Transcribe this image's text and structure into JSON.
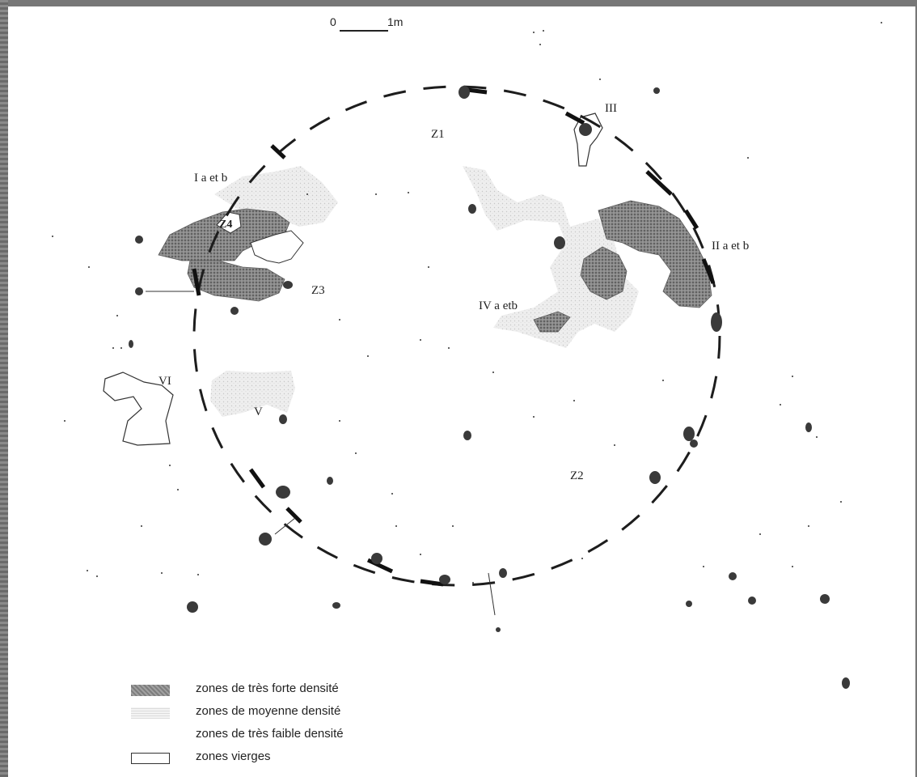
{
  "scale": {
    "start": "0",
    "end": "1m"
  },
  "labels": {
    "z1": "Z1",
    "z2": "Z2",
    "z3": "Z3",
    "z4": "Z4",
    "i": "I a et b",
    "ii": "II a et b",
    "iii": "III",
    "iv": "IV a etb",
    "v": "V",
    "vi": "VI"
  },
  "legend": [
    {
      "swatch": "high",
      "label": "zones de très forte densité"
    },
    {
      "swatch": "mid",
      "label": "zones de moyenne densité"
    },
    {
      "swatch": "low",
      "label": "zones de très faible densité"
    },
    {
      "swatch": "none",
      "label": "zones vierges"
    }
  ],
  "colors": {
    "high": "#7d7d7d",
    "mid": "#e3e3e3",
    "ink": "#2a2a2a"
  }
}
